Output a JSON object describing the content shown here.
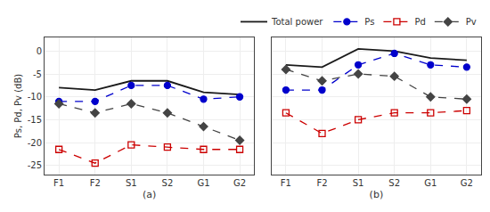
{
  "chart_data": [
    {
      "type": "line",
      "xlabel": "(a)",
      "ylabel": "Ps, Pd, Pv (dB)",
      "categories": [
        "F1",
        "F2",
        "S1",
        "S2",
        "G1",
        "G2"
      ],
      "series": [
        {
          "name": "Total power",
          "color": "#1a1a1a",
          "line_style": "solid",
          "marker": "none",
          "values": [
            -8.0,
            -8.5,
            -6.5,
            -6.5,
            -9.0,
            -9.5
          ]
        },
        {
          "name": "Ps",
          "color": "#0000cc",
          "line_style": "dashed",
          "marker": "circle",
          "values": [
            -11.0,
            -11.0,
            -7.5,
            -7.5,
            -10.5,
            -10.0
          ]
        },
        {
          "name": "Pd",
          "color": "#cc0000",
          "line_style": "dashed",
          "marker": "open square",
          "values": [
            -21.5,
            -24.5,
            -20.5,
            -21.0,
            -21.5,
            -21.5
          ]
        },
        {
          "name": "Pv",
          "color": "#444444",
          "line_style": "dashed",
          "marker": "diamond",
          "values": [
            -11.5,
            -13.5,
            -11.5,
            -13.5,
            -16.5,
            -19.5
          ]
        }
      ],
      "ylim": [
        -27,
        3
      ],
      "yticks": [
        0,
        -5,
        -10,
        -15,
        -20,
        -25
      ],
      "grid": true
    },
    {
      "type": "line",
      "xlabel": "(b)",
      "categories": [
        "F1",
        "F2",
        "S1",
        "S2",
        "G1",
        "G2"
      ],
      "series": [
        {
          "name": "Total power",
          "color": "#1a1a1a",
          "line_style": "solid",
          "marker": "none",
          "values": [
            -3.0,
            -3.5,
            0.5,
            0.0,
            -1.5,
            -2.0
          ]
        },
        {
          "name": "Ps",
          "color": "#0000cc",
          "line_style": "dashed",
          "marker": "circle",
          "values": [
            -8.5,
            -8.5,
            -3.0,
            -0.5,
            -3.0,
            -3.5
          ]
        },
        {
          "name": "Pd",
          "color": "#cc0000",
          "line_style": "dashed",
          "marker": "open square",
          "values": [
            -13.5,
            -18.0,
            -15.0,
            -13.5,
            -13.5,
            -13.0
          ]
        },
        {
          "name": "Pv",
          "color": "#444444",
          "line_style": "dashed",
          "marker": "diamond",
          "values": [
            -4.0,
            -6.5,
            -5.0,
            -5.5,
            -10.0,
            -10.5
          ]
        }
      ],
      "ylim": [
        -27,
        3
      ],
      "yticks": [
        0,
        -5,
        -10,
        -15,
        -20,
        -25
      ],
      "grid": true,
      "tick_labels": "x",
      "legend": "upper right"
    }
  ]
}
